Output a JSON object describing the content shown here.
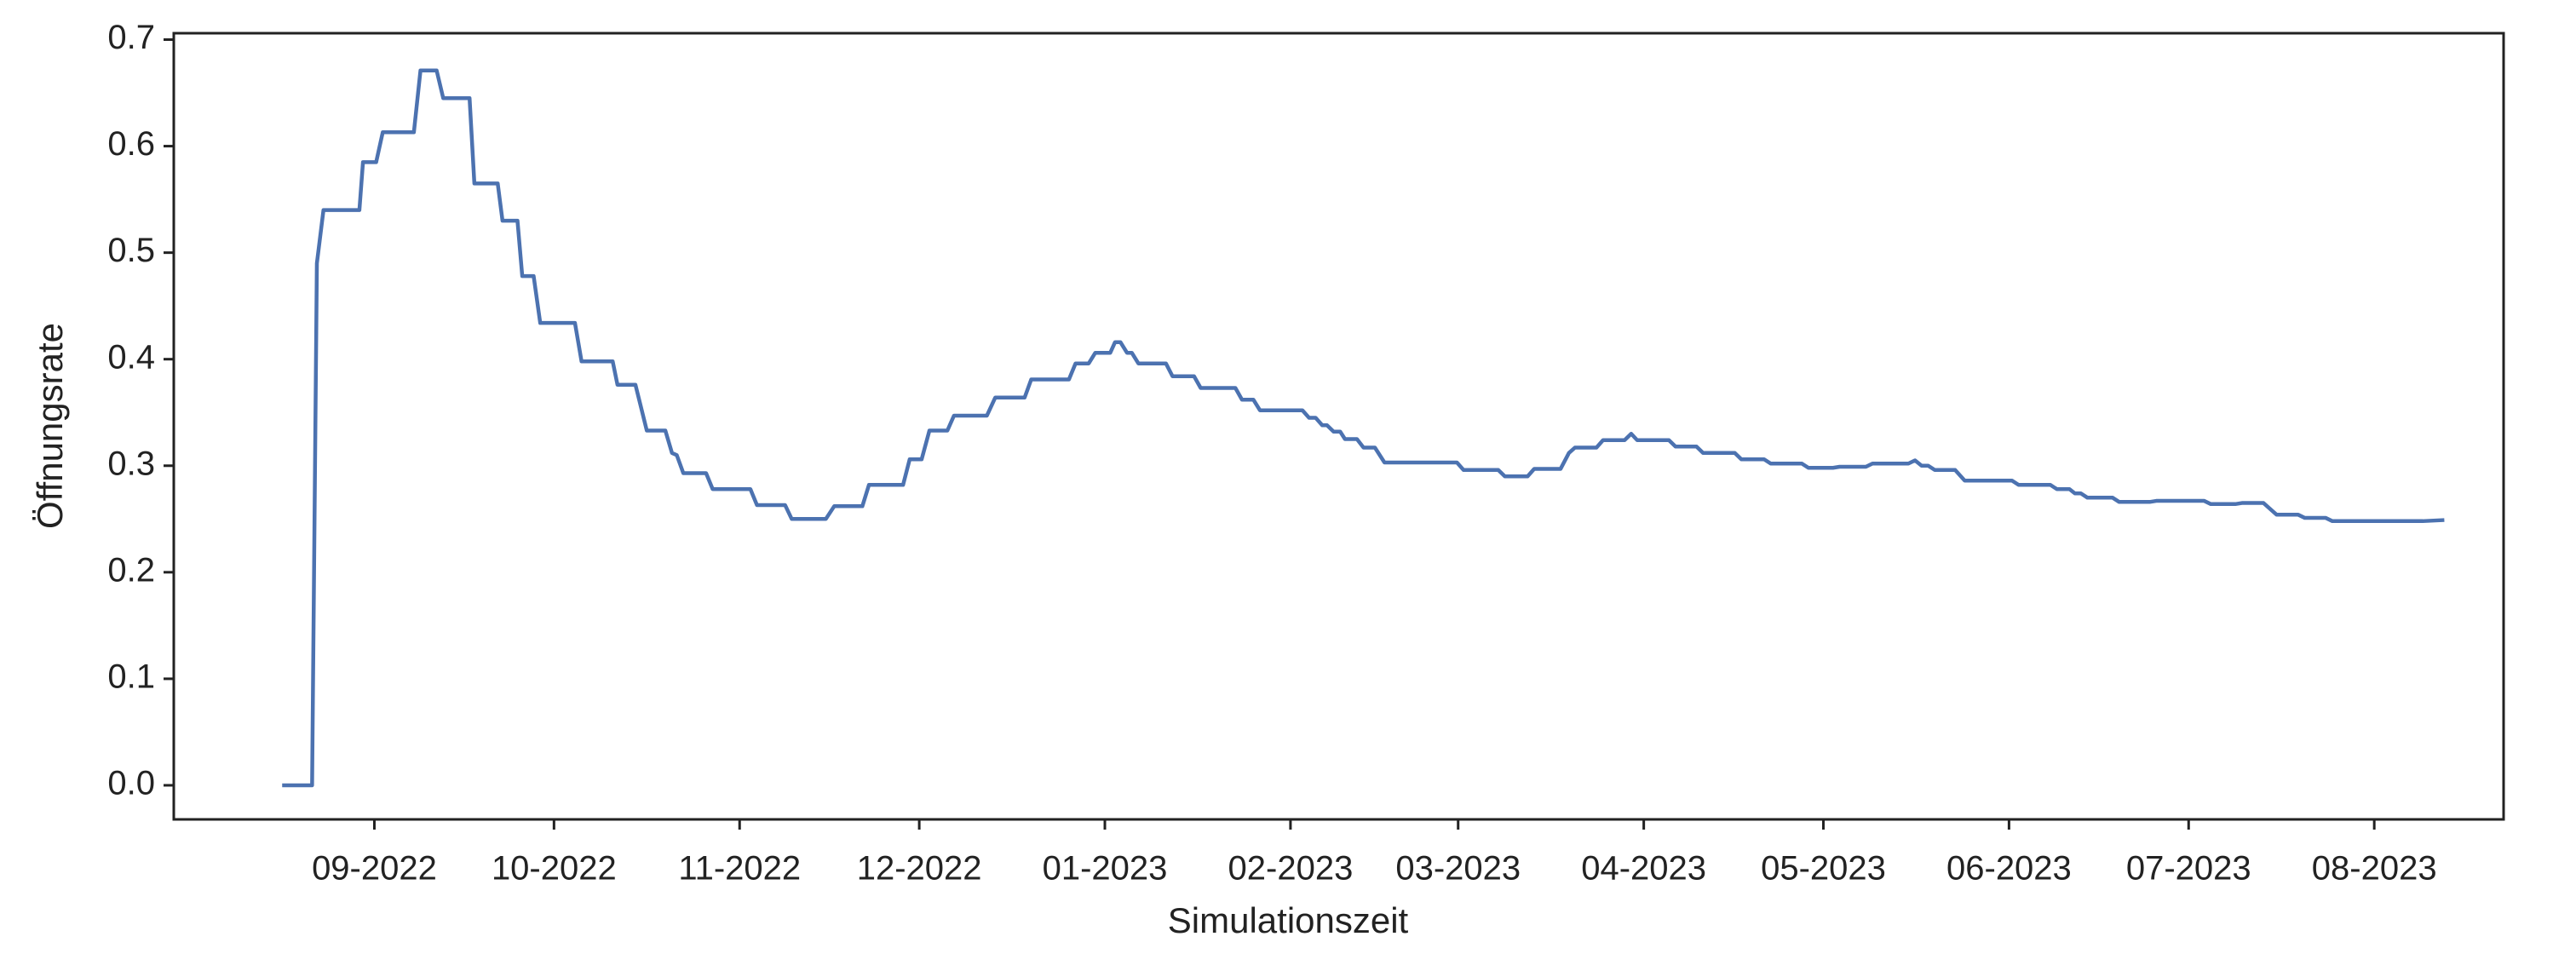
{
  "chart_data": {
    "type": "line",
    "xlabel": "Simulationszeit",
    "ylabel": "Öffnungsrate",
    "color": "#4c72b0",
    "x": [
      -15.4,
      -10.4,
      -9.6,
      -8.5,
      -2.5,
      -1.9,
      0.3,
      1.4,
      6.6,
      7.7,
      10.4,
      11.5,
      15.9,
      16.7,
      20.6,
      21.4,
      23.9,
      24.7,
      26.6,
      27.7,
      33.5,
      34.6,
      39.8,
      40.6,
      43.6,
      45.5,
      48.6,
      49.7,
      50.5,
      51.6,
      55.4,
      56.5,
      62.8,
      63.9,
      68.6,
      69.7,
      75.4,
      76.8,
      81.5,
      82.6,
      88.3,
      89.4,
      91.4,
      92.7,
      95.7,
      96.8,
      102.3,
      103.7,
      108.6,
      109.7,
      116.0,
      117.1,
      119.3,
      120.4,
      122.9,
      123.7,
      124.6,
      125.7,
      126.5,
      127.6,
      132.2,
      133.3,
      136.9,
      138.0,
      143.8,
      144.9,
      146.8,
      147.9,
      155.0,
      156.1,
      157.2,
      158.3,
      159.1,
      160.2,
      161.3,
      162.1,
      164.1,
      165.2,
      167.1,
      168.7,
      180.8,
      181.9,
      187.7,
      188.8,
      192.6,
      193.7,
      198.1,
      199.5,
      200.5,
      204.1,
      205.2,
      208.8,
      209.9,
      210.9,
      216.2,
      217.3,
      220.8,
      221.9,
      227.2,
      228.3,
      232.1,
      233.2,
      238.4,
      239.5,
      243.6,
      244.7,
      249.1,
      250.2,
      256.2,
      257.3,
      258.4,
      259.5,
      260.6,
      264.0,
      265.6,
      273.5,
      274.6,
      279.9,
      281.0,
      283.1,
      284.0,
      285.0,
      286.1,
      290.3,
      291.4,
      296.5,
      297.6,
      305.6,
      306.7,
      310.8,
      311.9,
      315.5,
      317.7,
      321.3,
      322.4,
      325.9,
      327.0,
      342.1,
      345.7
    ],
    "values": [
      0,
      0,
      0.49,
      0.54,
      0.54,
      0.585,
      0.585,
      0.613,
      0.613,
      0.671,
      0.671,
      0.645,
      0.645,
      0.565,
      0.565,
      0.53,
      0.53,
      0.478,
      0.478,
      0.434,
      0.434,
      0.398,
      0.398,
      0.376,
      0.376,
      0.333,
      0.333,
      0.312,
      0.31,
      0.293,
      0.293,
      0.278,
      0.278,
      0.263,
      0.263,
      0.25,
      0.25,
      0.262,
      0.262,
      0.282,
      0.282,
      0.306,
      0.306,
      0.333,
      0.333,
      0.347,
      0.347,
      0.364,
      0.364,
      0.381,
      0.381,
      0.396,
      0.396,
      0.406,
      0.406,
      0.416,
      0.416,
      0.406,
      0.406,
      0.396,
      0.396,
      0.384,
      0.384,
      0.373,
      0.373,
      0.362,
      0.362,
      0.352,
      0.352,
      0.345,
      0.345,
      0.338,
      0.338,
      0.332,
      0.332,
      0.325,
      0.325,
      0.317,
      0.317,
      0.303,
      0.303,
      0.296,
      0.296,
      0.29,
      0.29,
      0.297,
      0.297,
      0.312,
      0.317,
      0.317,
      0.324,
      0.324,
      0.33,
      0.324,
      0.324,
      0.318,
      0.318,
      0.312,
      0.312,
      0.306,
      0.306,
      0.302,
      0.302,
      0.298,
      0.298,
      0.299,
      0.299,
      0.302,
      0.302,
      0.305,
      0.3,
      0.3,
      0.296,
      0.296,
      0.286,
      0.286,
      0.282,
      0.282,
      0.278,
      0.278,
      0.274,
      0.274,
      0.27,
      0.27,
      0.266,
      0.266,
      0.267,
      0.267,
      0.264,
      0.264,
      0.265,
      0.265,
      0.254,
      0.254,
      0.251,
      0.251,
      0.248,
      0.248,
      0.249
    ],
    "xlim": [
      -33.5,
      355.6
    ],
    "xticks": [
      {
        "value": 0,
        "label": "09-2022"
      },
      {
        "value": 30,
        "label": "10-2022"
      },
      {
        "value": 61,
        "label": "11-2022"
      },
      {
        "value": 91,
        "label": "12-2022"
      },
      {
        "value": 122,
        "label": "01-2023"
      },
      {
        "value": 153,
        "label": "02-2023"
      },
      {
        "value": 181,
        "label": "03-2023"
      },
      {
        "value": 212,
        "label": "04-2023"
      },
      {
        "value": 242,
        "label": "05-2023"
      },
      {
        "value": 273,
        "label": "06-2023"
      },
      {
        "value": 303,
        "label": "07-2023"
      },
      {
        "value": 334,
        "label": "08-2023"
      }
    ],
    "ylim": [
      -0.032,
      0.706
    ],
    "yticks": [
      {
        "value": 0,
        "label": "0.0"
      },
      0.1,
      0.2,
      0.3,
      0.4,
      0.5,
      0.6,
      0.7
    ],
    "grid": false
  }
}
